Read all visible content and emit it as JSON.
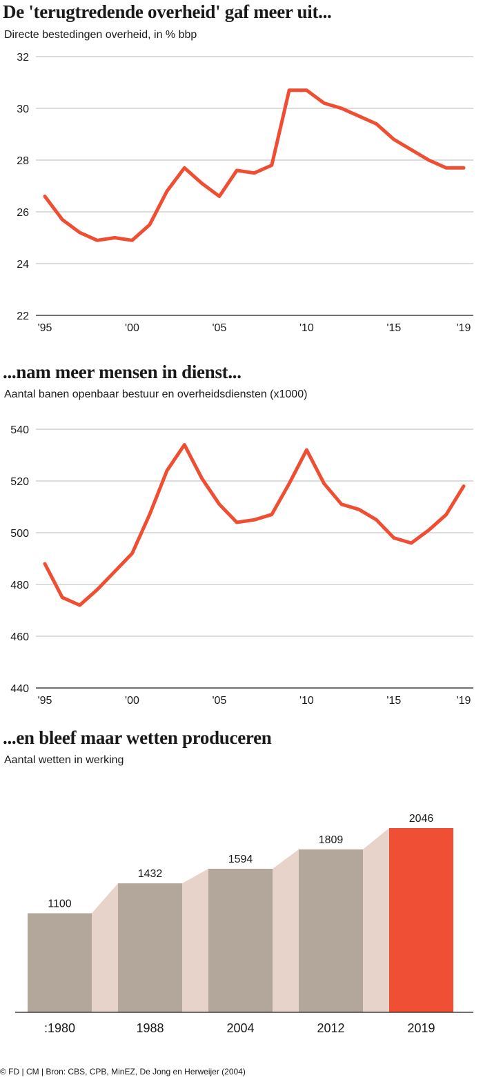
{
  "charts": {
    "spending": {
      "title": "De 'terugtredende overheid' gaf meer uit...",
      "subtitle": "Directe bestedingen overheid, in % bbp"
    },
    "jobs": {
      "title": "...nam meer mensen in dienst...",
      "subtitle": "Aantal banen openbaar bestuur en overheidsdiensten (x1000)"
    },
    "laws": {
      "title": "...en bleef maar wetten produceren",
      "subtitle": "Aantal wetten in werking"
    }
  },
  "footer": "© FD | CM | Bron: CBS, CPB, MinEZ, De Jong en Herweijer (2004)",
  "colors": {
    "line": "#ef4e33",
    "bar": "#b3a69a",
    "bar_highlight": "#ef5035",
    "connector": "#e7d3c9",
    "gridline": "#b9b9b9"
  },
  "chart_data": [
    {
      "type": "line",
      "title": "De 'terugtredende overheid' gaf meer uit...",
      "subtitle": "Directe bestedingen overheid, in % bbp",
      "x": [
        1995,
        1996,
        1997,
        1998,
        1999,
        2000,
        2001,
        2002,
        2003,
        2004,
        2005,
        2006,
        2007,
        2008,
        2009,
        2010,
        2011,
        2012,
        2013,
        2014,
        2015,
        2016,
        2017,
        2018,
        2019
      ],
      "series": [
        {
          "values": [
            26.6,
            25.7,
            25.2,
            24.9,
            25.0,
            24.9,
            25.5,
            26.8,
            27.7,
            27.1,
            26.6,
            27.6,
            27.5,
            27.8,
            30.7,
            30.7,
            30.2,
            30.0,
            29.7,
            29.4,
            28.8,
            28.4,
            28.0,
            27.7,
            27.7
          ]
        }
      ],
      "ylim": [
        22,
        32
      ],
      "yticks": [
        "32",
        "30",
        "28",
        "26",
        "24",
        "22"
      ],
      "xticks": [
        "'95",
        "'00",
        "'05",
        "'10",
        "'15",
        "'19"
      ],
      "grid": true
    },
    {
      "type": "line",
      "title": "...nam meer mensen in dienst...",
      "subtitle": "Aantal banen openbaar bestuur en overheidsdiensten (x1000)",
      "x": [
        1995,
        1996,
        1997,
        1998,
        1999,
        2000,
        2001,
        2002,
        2003,
        2004,
        2005,
        2006,
        2007,
        2008,
        2009,
        2010,
        2011,
        2012,
        2013,
        2014,
        2015,
        2016,
        2017,
        2018,
        2019
      ],
      "series": [
        {
          "values": [
            488,
            475,
            472,
            478,
            485,
            492,
            507,
            524,
            534,
            521,
            511,
            504,
            505,
            507,
            519,
            532,
            519,
            511,
            509,
            505,
            498,
            496,
            501,
            507,
            518
          ]
        }
      ],
      "ylim": [
        440,
        540
      ],
      "yticks": [
        "540",
        "520",
        "500",
        "480",
        "460",
        "440"
      ],
      "xticks": [
        "'95",
        "'00",
        "'05",
        "'10",
        "'15",
        "'19"
      ],
      "grid": true
    },
    {
      "type": "bar",
      "title": "...en bleef maar wetten produceren",
      "subtitle": "Aantal wetten in werking",
      "categories": [
        ":1980",
        "1988",
        "2004",
        "2012",
        "2019"
      ],
      "values": [
        1100,
        1432,
        1594,
        1809,
        2046
      ],
      "labels": [
        "1100",
        "1432",
        "1594",
        "1809",
        "2046"
      ],
      "highlight_index": 4
    }
  ]
}
